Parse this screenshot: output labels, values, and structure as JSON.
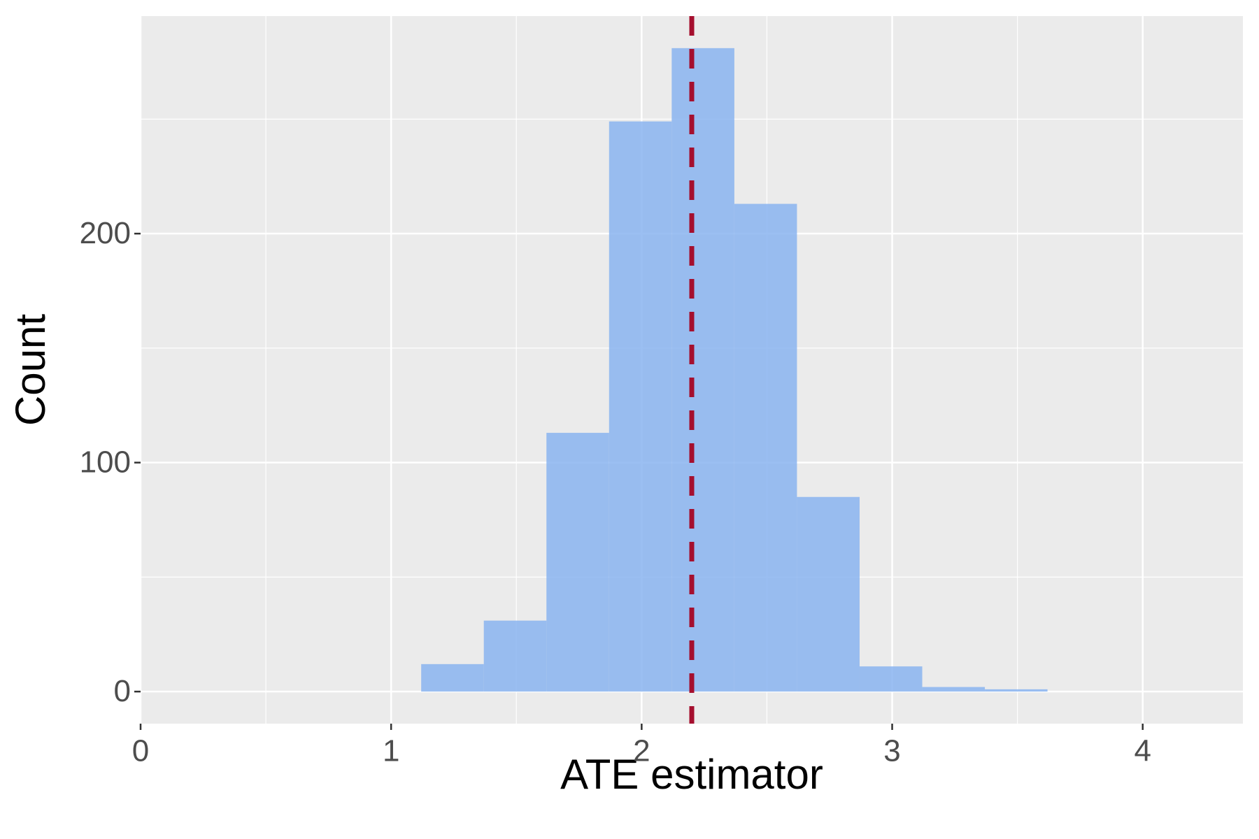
{
  "chart_data": {
    "type": "histogram",
    "x_label": "ATE estimator",
    "y_label": "Count",
    "bins": [
      1.12,
      1.37,
      1.62,
      1.87,
      2.12,
      2.37,
      2.62,
      2.87,
      3.12,
      3.37,
      3.62
    ],
    "values": [
      12,
      31,
      113,
      249,
      281,
      213,
      85,
      11,
      2,
      1
    ],
    "color": "#8ab4f0",
    "xlim": [
      0,
      4.4
    ],
    "ylim": [
      -14,
      295
    ],
    "xticks": [
      0,
      1,
      2,
      3,
      4
    ],
    "yticks": [
      0,
      100,
      200
    ],
    "minor_xticks": [
      0.5,
      1.5,
      2.5,
      3.5
    ],
    "minor_yticks": [
      50,
      150,
      250
    ],
    "vline": 2.2,
    "vline_color": "#a50f2e",
    "grid": true
  }
}
